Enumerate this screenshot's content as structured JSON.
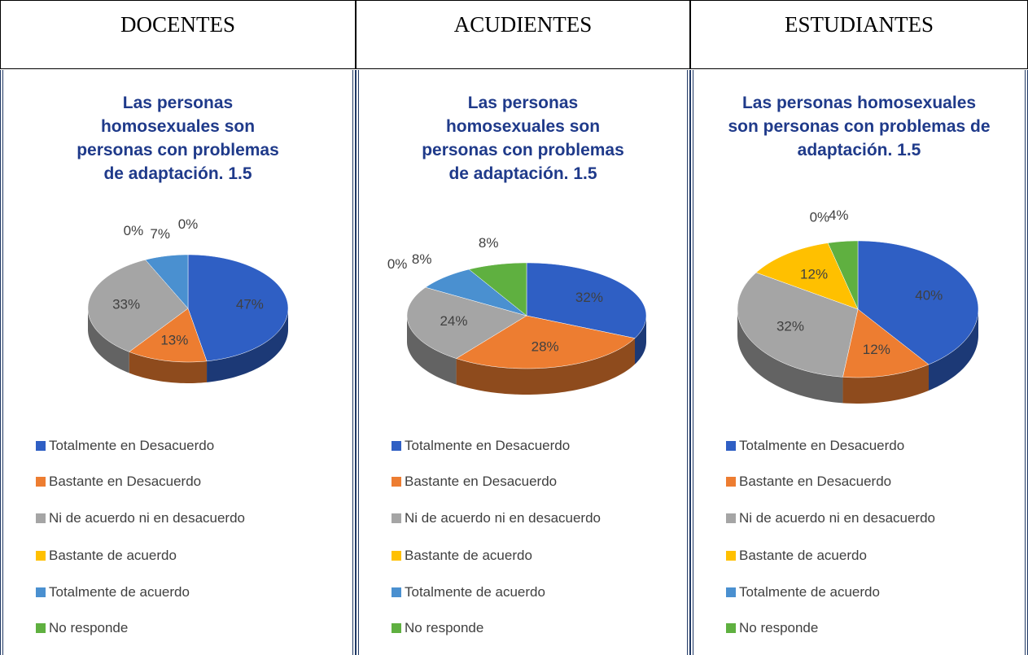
{
  "table": {
    "headers": [
      "DOCENTES",
      "ACUDIENTES",
      "ESTUDIANTES"
    ]
  },
  "chart_data": [
    {
      "type": "pie",
      "title": "Las personas homosexuales son personas con problemas de adaptación. 1.5",
      "categories": [
        "Totalmente en Desacuerdo",
        "Bastante en Desacuerdo",
        "Ni de acuerdo ni en desacuerdo",
        "Bastante de acuerdo",
        "Totalmente de acuerdo",
        "No responde"
      ],
      "values": [
        47,
        13,
        33,
        0,
        7,
        0
      ],
      "value_labels": [
        "47%",
        "13%",
        "33%",
        "0%",
        "7%",
        "0%"
      ],
      "colors": [
        "#2f5fc4",
        "#ed7d31",
        "#a5a5a5",
        "#ffc000",
        "#4a90d0",
        "#5fb040"
      ]
    },
    {
      "type": "pie",
      "title": "Las personas homosexuales son personas con problemas de adaptación. 1.5",
      "categories": [
        "Totalmente en Desacuerdo",
        "Bastante en Desacuerdo",
        "Ni de acuerdo ni en desacuerdo",
        "Bastante de acuerdo",
        "Totalmente de acuerdo",
        "No responde"
      ],
      "values": [
        32,
        28,
        24,
        0,
        8,
        8
      ],
      "value_labels": [
        "32%",
        "28%",
        "24%",
        "0%",
        "8%",
        "8%"
      ],
      "colors": [
        "#2f5fc4",
        "#ed7d31",
        "#a5a5a5",
        "#ffc000",
        "#4a90d0",
        "#5fb040"
      ]
    },
    {
      "type": "pie",
      "title": "Las personas homosexuales son personas con problemas de adaptación. 1.5",
      "categories": [
        "Totalmente en Desacuerdo",
        "Bastante en Desacuerdo",
        "Ni de acuerdo ni en desacuerdo",
        "Bastante de acuerdo",
        "Totalmente de acuerdo",
        "No responde"
      ],
      "values": [
        40,
        12,
        32,
        12,
        0,
        4
      ],
      "value_labels": [
        "40%",
        "12%",
        "32%",
        "12%",
        "0%",
        "4%"
      ],
      "colors": [
        "#2f5fc4",
        "#ed7d31",
        "#a5a5a5",
        "#ffc000",
        "#4a90d0",
        "#5fb040"
      ]
    }
  ]
}
